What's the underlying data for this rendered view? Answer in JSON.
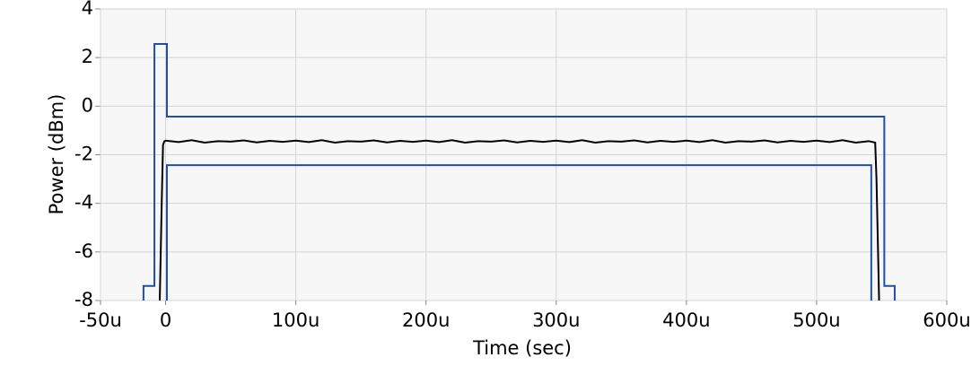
{
  "chart_data": {
    "type": "line",
    "x_label": "Time (sec)",
    "y_label": "Power (dBm)",
    "xlim": [
      -5e-05,
      0.0006
    ],
    "xticks": [
      {
        "value": -5e-05,
        "label": "-50u"
      },
      0,
      {
        "value": 0.0001,
        "label": "100u"
      },
      {
        "value": 0.0002,
        "label": "200u"
      },
      {
        "value": 0.0003,
        "label": "300u"
      },
      {
        "value": 0.0004,
        "label": "400u"
      },
      {
        "value": 0.0005,
        "label": "500u"
      },
      {
        "value": 0.0006,
        "label": "600u"
      }
    ],
    "ylim": [
      -8,
      4
    ],
    "yticks": [
      -8,
      -6,
      -4,
      -2,
      0,
      2,
      4
    ],
    "grid": true,
    "series": [
      {
        "color": "#1f4fa8",
        "x": [
          -1.7e-05,
          -1.7e-05,
          -8.6e-06,
          -8.6e-06,
          1e-06,
          1e-06,
          0.000552,
          0.000552,
          0.00056,
          0.00056
        ],
        "values": [
          -8,
          -7.4,
          -7.4,
          2.56,
          2.56,
          -0.43,
          -0.43,
          -7.4,
          -7.4,
          -8
        ]
      },
      {
        "color": "#1f4fa8",
        "x": [
          1e-06,
          1e-06,
          0.000542,
          0.000542
        ],
        "values": [
          -8,
          -2.43,
          -2.43,
          -8
        ]
      },
      {
        "color": "#000000",
        "x": [
          -4.5e-06,
          -3e-06,
          -2e-06,
          -1e-06,
          0,
          1e-05,
          2e-05,
          3e-05,
          4e-05,
          5e-05,
          6e-05,
          7e-05,
          8e-05,
          9e-05,
          0.0001,
          0.00011,
          0.00012,
          0.00013,
          0.00014,
          0.00015,
          0.00016,
          0.00017,
          0.00018,
          0.00019,
          0.0002,
          0.00021,
          0.00022,
          0.00023,
          0.00024,
          0.00025,
          0.00026,
          0.00027,
          0.00028,
          0.00029,
          0.0003,
          0.00031,
          0.00032,
          0.00033,
          0.00034,
          0.00035,
          0.00036,
          0.00037,
          0.00038,
          0.00039,
          0.0004,
          0.00041,
          0.00042,
          0.00043,
          0.00044,
          0.00045,
          0.00046,
          0.00047,
          0.00048,
          0.00049,
          0.0005,
          0.00051,
          0.00052,
          0.00053,
          0.00054,
          0.000545,
          0.000546,
          0.000548
        ],
        "values": [
          -8,
          -4,
          -1.6,
          -1.45,
          -1.42,
          -1.48,
          -1.4,
          -1.5,
          -1.44,
          -1.46,
          -1.41,
          -1.49,
          -1.43,
          -1.47,
          -1.42,
          -1.48,
          -1.4,
          -1.5,
          -1.44,
          -1.46,
          -1.41,
          -1.49,
          -1.43,
          -1.47,
          -1.42,
          -1.48,
          -1.4,
          -1.5,
          -1.44,
          -1.46,
          -1.41,
          -1.49,
          -1.43,
          -1.47,
          -1.42,
          -1.48,
          -1.4,
          -1.5,
          -1.44,
          -1.46,
          -1.41,
          -1.49,
          -1.43,
          -1.47,
          -1.42,
          -1.48,
          -1.4,
          -1.5,
          -1.44,
          -1.46,
          -1.41,
          -1.49,
          -1.43,
          -1.47,
          -1.42,
          -1.48,
          -1.4,
          -1.5,
          -1.44,
          -1.5,
          -3,
          -8
        ]
      }
    ]
  }
}
